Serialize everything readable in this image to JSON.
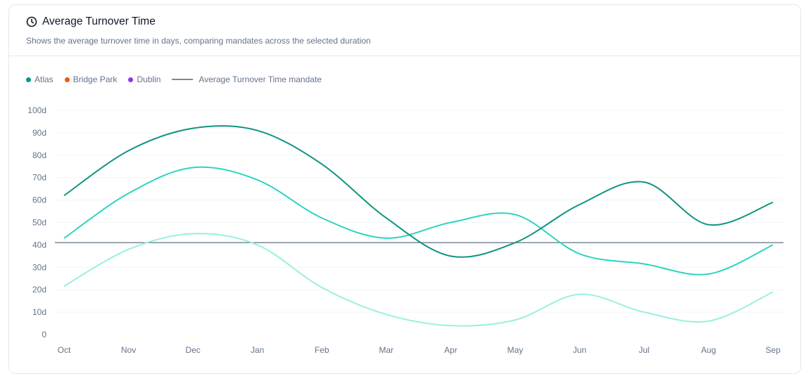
{
  "header": {
    "title": "Average Turnover Time",
    "subtitle": "Shows the average turnover time in days, comparing mandates across the selected duration",
    "icon": "clock-icon"
  },
  "legend": [
    {
      "label": "Atlas",
      "color": "#0d9488"
    },
    {
      "label": "Bridge Park",
      "color": "#ea580c"
    },
    {
      "label": "Dublin",
      "color": "#9333ea"
    },
    {
      "label": "Average Turnover Time mandate",
      "color": "#7d8796"
    }
  ],
  "chart_data": {
    "type": "line",
    "title": "Average Turnover Time",
    "categories": [
      "Oct",
      "Nov",
      "Dec",
      "Jan",
      "Feb",
      "Mar",
      "Apr",
      "May",
      "Jun",
      "Jul",
      "Aug",
      "Sep"
    ],
    "y_ticks": [
      "0",
      "10d",
      "20d",
      "30d",
      "40d",
      "50d",
      "60d",
      "70d",
      "80d",
      "90d",
      "100d"
    ],
    "ylim": [
      0,
      100
    ],
    "grid": true,
    "legend_placement": "top-left",
    "series": [
      {
        "name": "Atlas",
        "color": "#0f9482",
        "values": [
          62,
          82,
          92,
          91,
          76,
          52,
          35,
          41,
          58,
          68,
          49,
          59
        ]
      },
      {
        "name": "Bridge Park",
        "color": "#2dd4bf",
        "values": [
          43,
          63,
          74.5,
          69,
          52,
          43,
          50,
          53.5,
          36,
          31.5,
          27,
          40
        ]
      },
      {
        "name": "Dublin",
        "color": "#99f0e0",
        "values": [
          21.6,
          38,
          45,
          40,
          21,
          9,
          4,
          6.5,
          18,
          10,
          6,
          19
        ]
      }
    ],
    "reference_line": {
      "name": "Average Turnover Time mandate",
      "value": 41,
      "color": "#7d8796"
    }
  }
}
